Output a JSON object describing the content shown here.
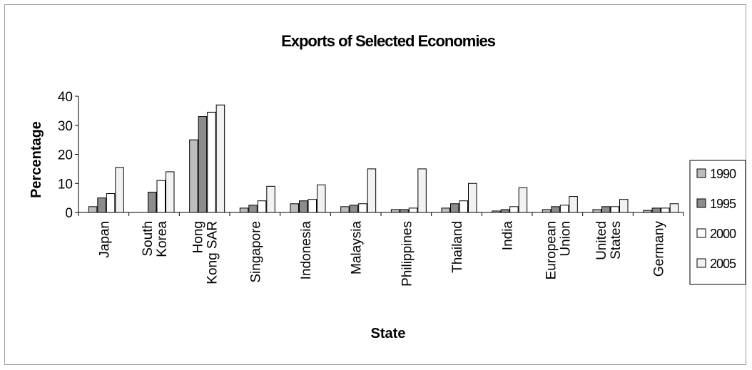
{
  "chart_data": {
    "type": "bar",
    "title": "Exports of Selected Economies",
    "xlabel": "State",
    "ylabel": "Percentage",
    "ylim": [
      0,
      40
    ],
    "yticks": [
      0,
      10,
      20,
      30,
      40
    ],
    "grid": false,
    "legend_position": "right",
    "categories": [
      [
        "Japan"
      ],
      [
        "South",
        "Korea"
      ],
      [
        "Hong",
        "Kong SAR"
      ],
      [
        "Singapore"
      ],
      [
        "Indonesia"
      ],
      [
        "Malaysia"
      ],
      [
        "Philippines"
      ],
      [
        "Thailand"
      ],
      [
        "India"
      ],
      [
        "European",
        "Union"
      ],
      [
        "United",
        "States"
      ],
      [
        "Germany"
      ]
    ],
    "series": [
      {
        "name": "1990",
        "color": "#bdbdbd",
        "values": [
          2,
          0,
          25,
          1.5,
          3,
          2,
          1,
          1.5,
          0.5,
          1,
          1,
          0.7
        ]
      },
      {
        "name": "1995",
        "color": "#8c8c8c",
        "values": [
          5,
          7,
          33,
          2.5,
          4,
          2.5,
          1,
          3,
          1,
          2,
          2,
          1.5
        ]
      },
      {
        "name": "2000",
        "color": "#ffffff",
        "values": [
          6.5,
          11,
          34.5,
          4,
          4.5,
          3,
          1.5,
          4,
          2,
          2.5,
          2,
          1.5
        ]
      },
      {
        "name": "2005",
        "color": "#f2f2f2",
        "values": [
          15.5,
          14,
          37,
          9,
          9.5,
          15,
          15,
          10,
          8.5,
          5.5,
          4.5,
          3
        ]
      }
    ]
  }
}
